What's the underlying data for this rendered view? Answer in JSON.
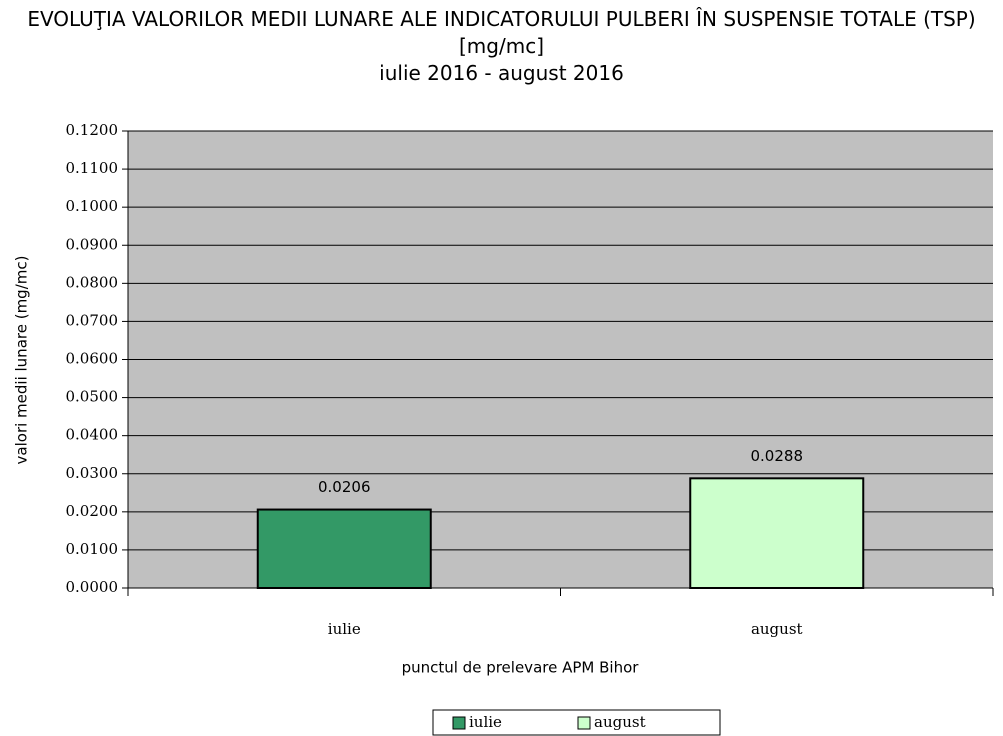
{
  "chart_data": {
    "type": "bar",
    "title": "EVOLUŢIA VALORILOR MEDII LUNARE ALE INDICATORULUI PULBERI ÎN SUSPENSIE TOTALE (TSP) [mg/mc]",
    "subtitle": "iulie 2016 - august 2016",
    "x_label": "punctul de prelevare APM Bihor",
    "y_label": "valori medii lunare (mg/mc)",
    "categories": [
      "iulie",
      "august"
    ],
    "series": [
      {
        "name": "iulie",
        "color": "#339966",
        "values": [
          0.0206,
          null
        ]
      },
      {
        "name": "august",
        "color": "#ccffcc",
        "values": [
          null,
          0.0288
        ]
      }
    ],
    "ylim": [
      0,
      0.12
    ],
    "yticks": [
      {
        "value": 0,
        "label": "0.0000"
      },
      {
        "value": 0.01,
        "label": "0.0100"
      },
      {
        "value": 0.02,
        "label": "0.0200"
      },
      {
        "value": 0.03,
        "label": "0.0300"
      },
      {
        "value": 0.04,
        "label": "0.0400"
      },
      {
        "value": 0.05,
        "label": "0.0500"
      },
      {
        "value": 0.06,
        "label": "0.0600"
      },
      {
        "value": 0.07,
        "label": "0.0700"
      },
      {
        "value": 0.08,
        "label": "0.0800"
      },
      {
        "value": 0.09,
        "label": "0.0900"
      },
      {
        "value": 0.1,
        "label": "0.1000"
      },
      {
        "value": 0.11,
        "label": "0.1100"
      },
      {
        "value": 0.12,
        "label": "0.1200"
      }
    ],
    "grid": true,
    "plot_background": "#c0c0c0",
    "legend": "bottom"
  }
}
